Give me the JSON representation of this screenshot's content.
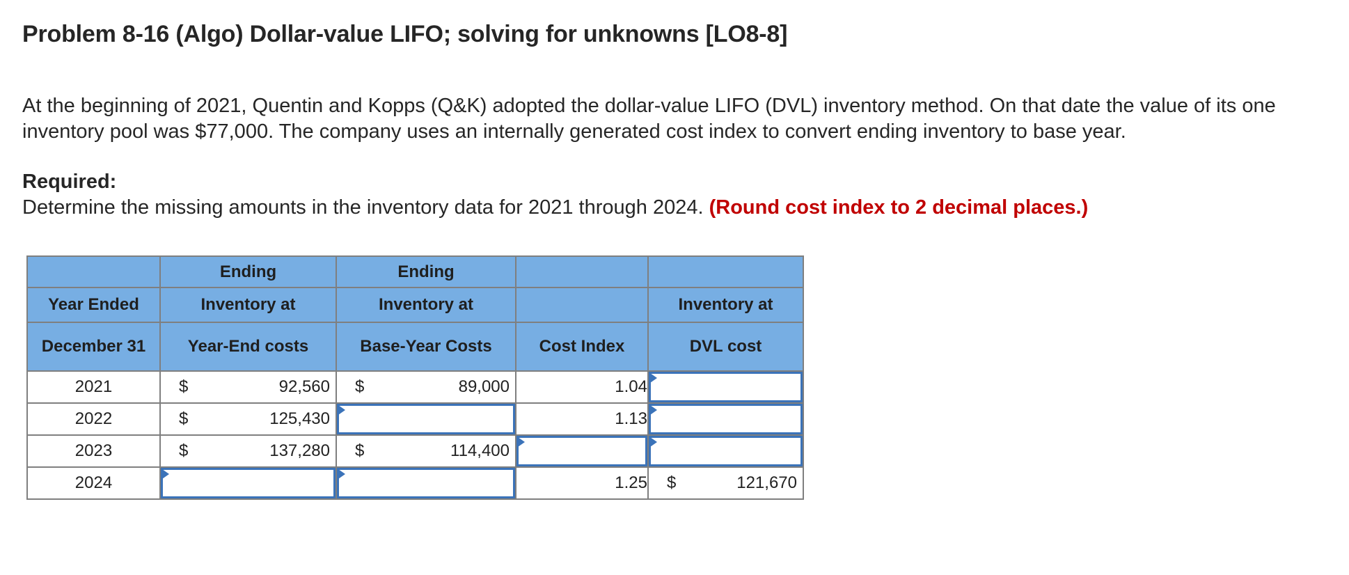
{
  "problem": {
    "title": "Problem 8-16 (Algo) Dollar-value LIFO; solving for unknowns [LO8-8]",
    "intro": "At the beginning of 2021, Quentin and Kopps (Q&K) adopted the dollar-value LIFO (DVL) inventory method. On that date the value of its one inventory pool was $77,000. The company uses an internally generated cost index to convert ending inventory to base year.",
    "required_label": "Required:",
    "instruction": "Determine the missing amounts in the inventory data for 2021 through 2024.",
    "instruction_note": "(Round cost index to 2 decimal places.)"
  },
  "colors": {
    "header_bg": "#77aee3",
    "input_border": "#3b73b9",
    "note_red": "#c00000",
    "grid": "#7f7f7f"
  },
  "table": {
    "headers": {
      "row1": [
        "",
        "Ending",
        "Ending",
        "",
        ""
      ],
      "row2": [
        "Year Ended",
        "Inventory at",
        "Inventory at",
        "",
        "Inventory at"
      ],
      "row3": [
        "December 31",
        "Year-End costs",
        "Base-Year Costs",
        "Cost Index",
        "DVL cost"
      ]
    },
    "currency_symbol": "$",
    "rows": [
      {
        "year": "2021",
        "year_end_cost": "92,560",
        "base_year_cost": "89,000",
        "cost_index": "1.04",
        "dvl_cost": ""
      },
      {
        "year": "2022",
        "year_end_cost": "125,430",
        "base_year_cost": "",
        "cost_index": "1.13",
        "dvl_cost": ""
      },
      {
        "year": "2023",
        "year_end_cost": "137,280",
        "base_year_cost": "114,400",
        "cost_index": "",
        "dvl_cost": ""
      },
      {
        "year": "2024",
        "year_end_cost": "",
        "base_year_cost": "",
        "cost_index": "1.25",
        "dvl_cost": "121,670"
      }
    ]
  }
}
